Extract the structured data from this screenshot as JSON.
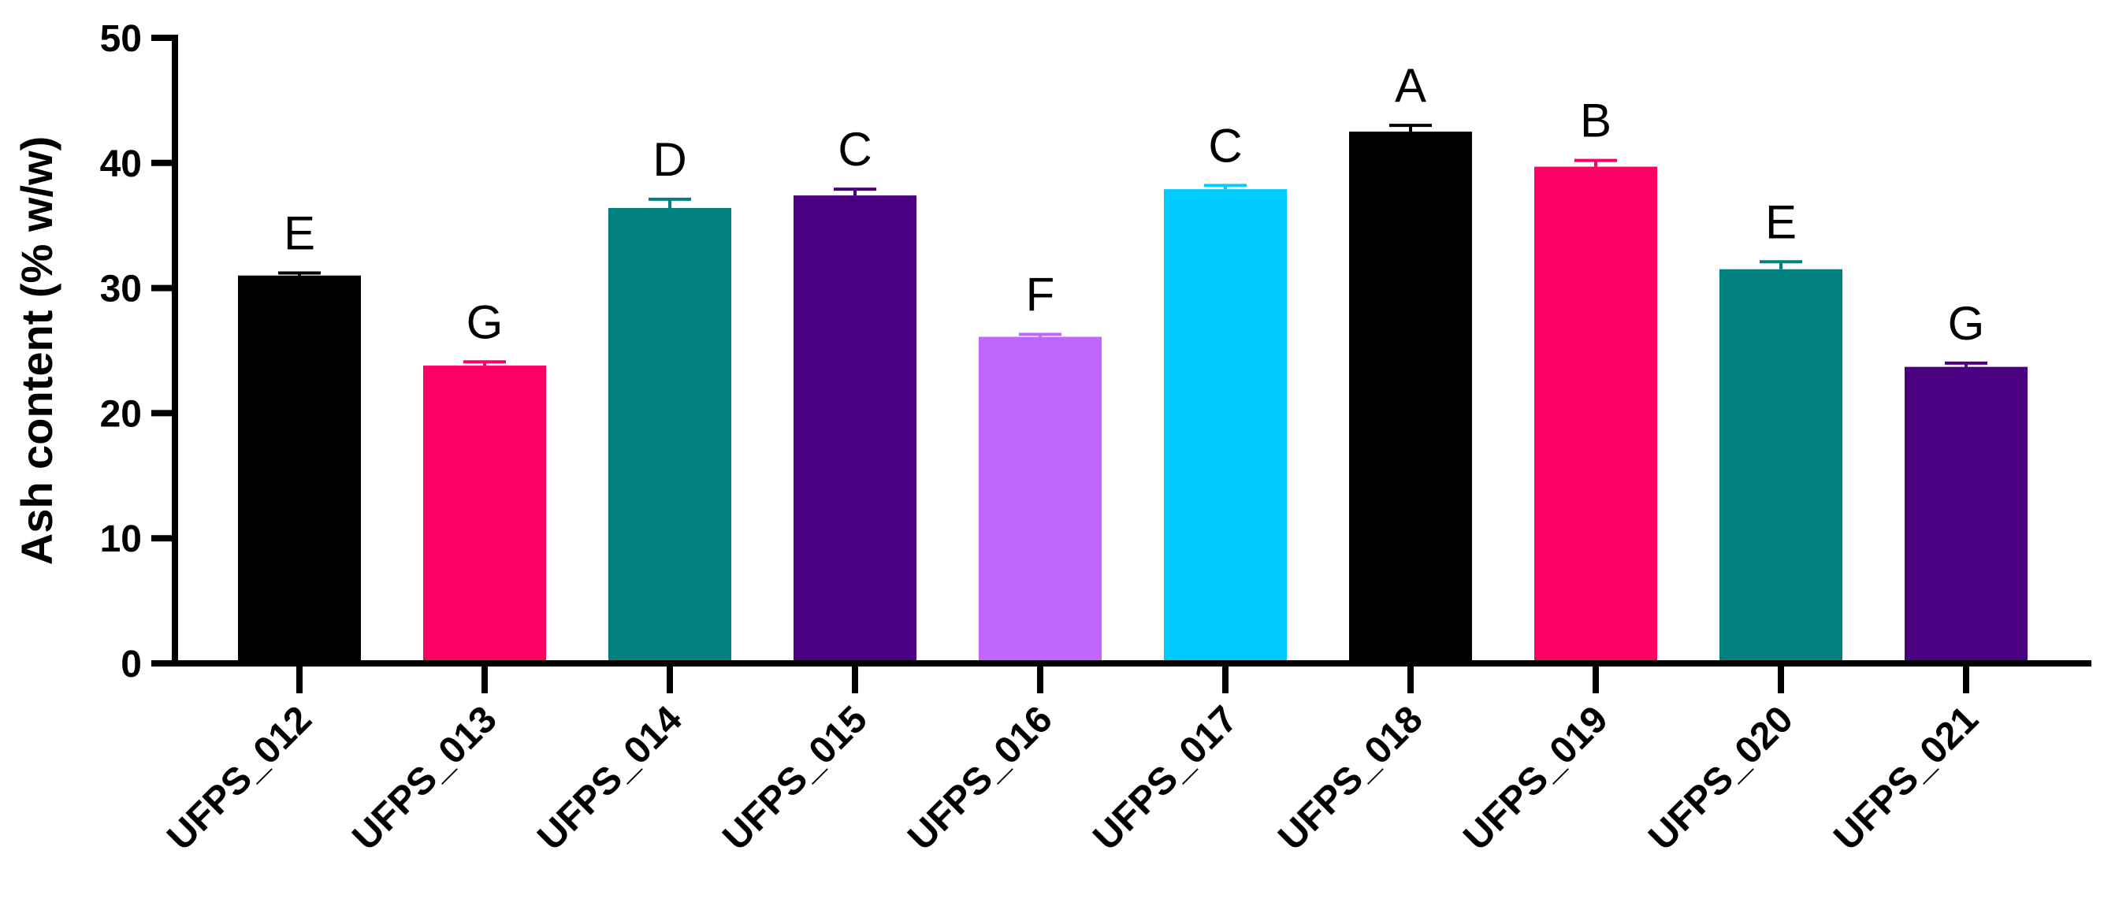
{
  "chart_data": {
    "type": "bar",
    "title": "",
    "xlabel": "",
    "ylabel": "Ash content (%  w/w)",
    "ylim": [
      0,
      50
    ],
    "yticks": [
      0,
      10,
      20,
      30,
      40,
      50
    ],
    "grid": false,
    "legend": "none",
    "categories": [
      "UFPS_012",
      "UFPS_013",
      "UFPS_014",
      "UFPS_015",
      "UFPS_016",
      "UFPS_017",
      "UFPS_018",
      "UFPS_019",
      "UFPS_020",
      "UFPS_021"
    ],
    "values": [
      31.0,
      23.8,
      36.4,
      37.4,
      26.1,
      37.9,
      42.5,
      39.7,
      31.5,
      23.7
    ],
    "errors": [
      0.2,
      0.3,
      0.7,
      0.5,
      0.2,
      0.3,
      0.5,
      0.5,
      0.6,
      0.3
    ],
    "significance_letters": [
      "E",
      "G",
      "D",
      "C",
      "F",
      "C",
      "A",
      "B",
      "E",
      "G"
    ],
    "colors": [
      "#000000",
      "#ff0066",
      "#008080",
      "#4b0082",
      "#bf66ff",
      "#00ccff",
      "#000000",
      "#ff0066",
      "#008080",
      "#4b0082"
    ]
  }
}
